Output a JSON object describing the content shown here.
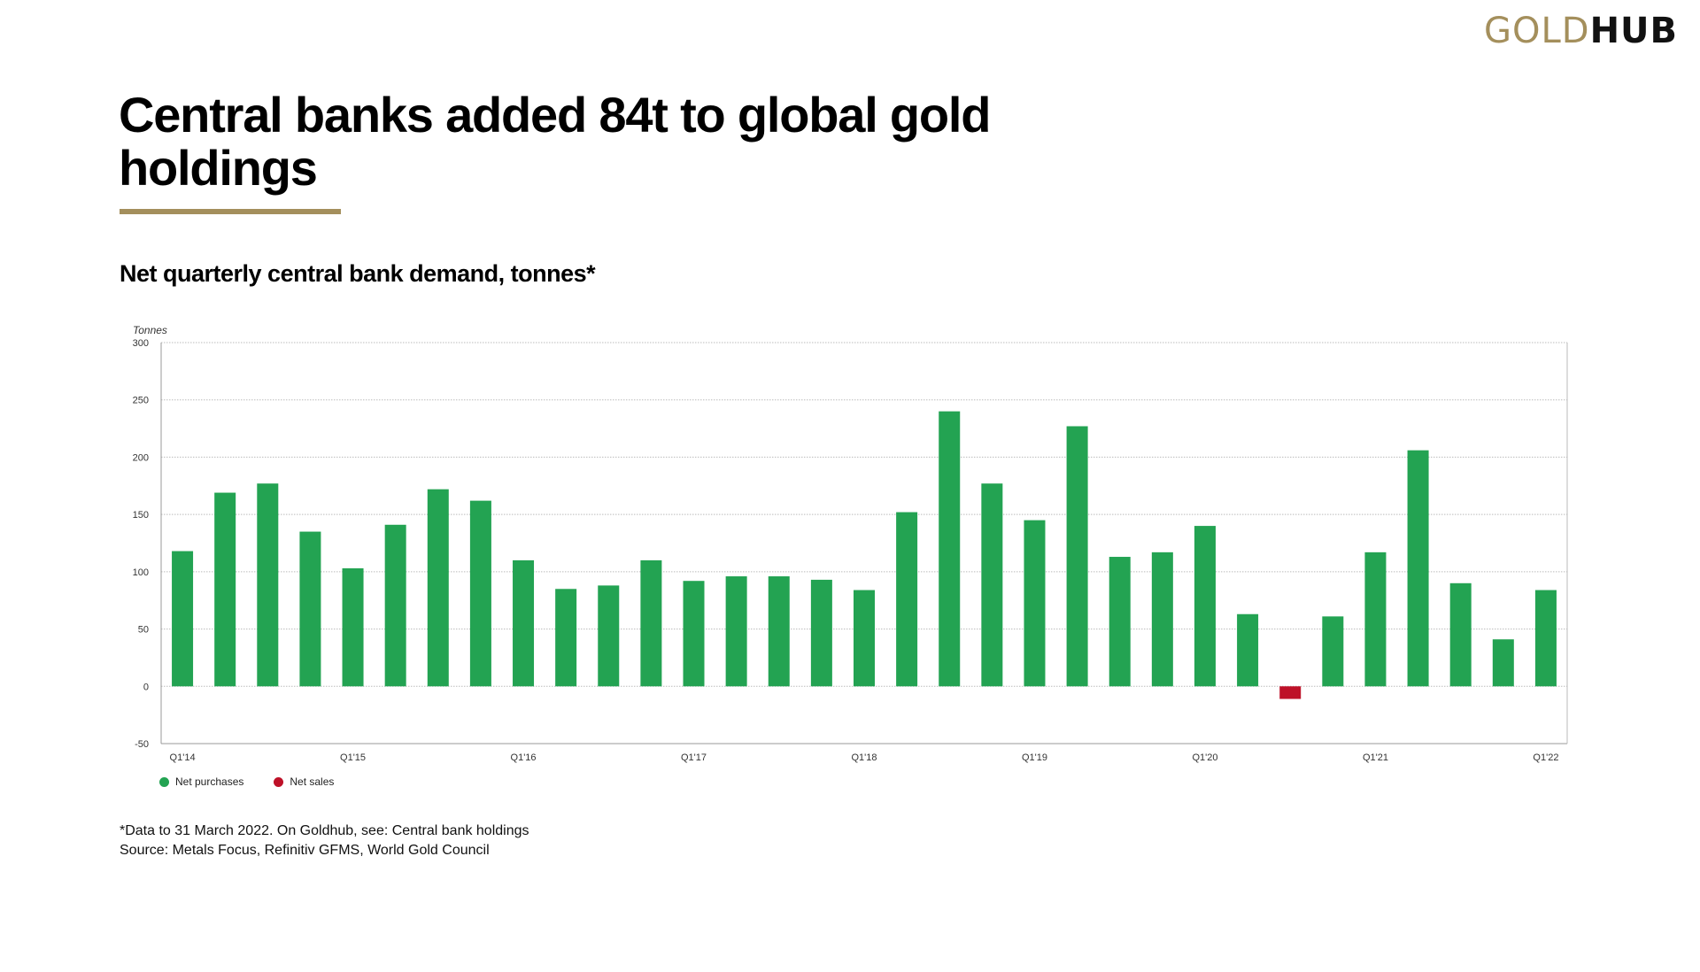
{
  "logo": {
    "part1": "GOLD",
    "part2": "HUB"
  },
  "title": "Central banks added 84t to global gold holdings",
  "subtitle": "Net quarterly central bank demand, tonnes*",
  "footnote": "*Data to 31 March 2022. On Goldhub, see: Central bank holdings",
  "source": "Source: Metals Focus, Refinitiv GFMS, World Gold Council",
  "colors": {
    "accent": "#A48F5C",
    "positive": "#23A352",
    "negative": "#BE1128"
  },
  "chart_data": {
    "type": "bar",
    "ylabel": "Tonnes",
    "ylim": [
      -50,
      300
    ],
    "yticks": [
      300,
      250,
      200,
      150,
      100,
      50,
      0,
      -50
    ],
    "grid": true,
    "legend_placement": "bottom-left",
    "legend": [
      {
        "name": "Net purchases",
        "color": "#23A352"
      },
      {
        "name": "Net sales",
        "color": "#BE1128"
      }
    ],
    "categories": [
      "Q1'14",
      "Q2'14",
      "Q3'14",
      "Q4'14",
      "Q1'15",
      "Q2'15",
      "Q3'15",
      "Q4'15",
      "Q1'16",
      "Q2'16",
      "Q3'16",
      "Q4'16",
      "Q1'17",
      "Q2'17",
      "Q3'17",
      "Q4'17",
      "Q1'18",
      "Q2'18",
      "Q3'18",
      "Q4'18",
      "Q1'19",
      "Q2'19",
      "Q3'19",
      "Q4'19",
      "Q1'20",
      "Q2'20",
      "Q3'20",
      "Q4'20",
      "Q1'21",
      "Q2'21",
      "Q3'21",
      "Q4'21",
      "Q1'22"
    ],
    "xtick_labels": [
      "Q1'14",
      "Q1'15",
      "Q1'16",
      "Q1'17",
      "Q1'18",
      "Q1'19",
      "Q1'20",
      "Q1'21",
      "Q1'22"
    ],
    "values": [
      118,
      169,
      177,
      135,
      103,
      141,
      172,
      162,
      110,
      85,
      88,
      110,
      92,
      96,
      96,
      93,
      84,
      152,
      240,
      177,
      145,
      227,
      113,
      117,
      140,
      63,
      -11,
      61,
      117,
      206,
      90,
      41,
      84
    ]
  }
}
